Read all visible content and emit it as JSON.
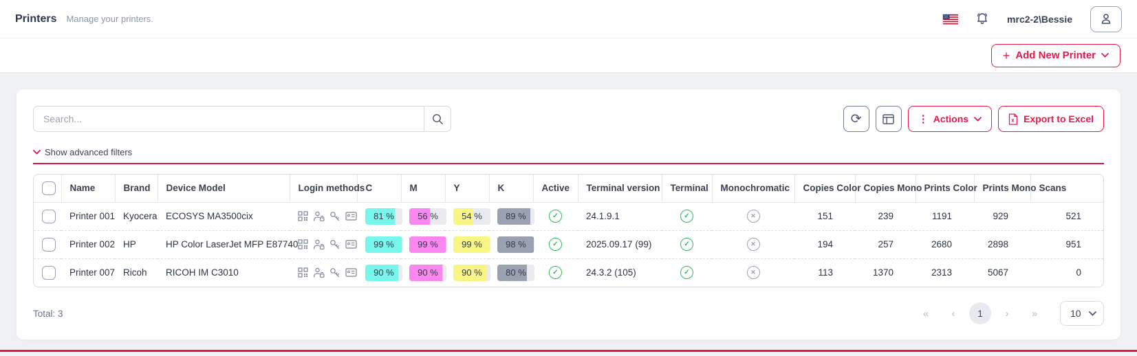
{
  "header": {
    "title": "Printers",
    "subtitle": "Manage your printers.",
    "username": "mrc2-2\\Bessie"
  },
  "toolbar": {
    "add_label": "Add New Printer",
    "actions_label": "Actions",
    "export_label": "Export to Excel"
  },
  "card": {
    "search_placeholder": "Search...",
    "filters_label": "Show advanced filters"
  },
  "table": {
    "columns": [
      "Name",
      "Brand",
      "Device Model",
      "Login methods",
      "C",
      "M",
      "Y",
      "K",
      "Active",
      "Terminal version",
      "Terminal",
      "Monochromatic",
      "Copies Color",
      "Copies Mono",
      "Prints Color",
      "Prints Mono",
      "Scans"
    ],
    "login_method_icons": [
      "qr-code",
      "user-lock",
      "key",
      "id-card"
    ],
    "rows": [
      {
        "name": "Printer 001",
        "brand": "Kyocera",
        "model": "ECOSYS MA3500cix",
        "c": 81,
        "m": 56,
        "y": 54,
        "k": 89,
        "active": true,
        "terminal_version": "24.1.9.1",
        "terminal": true,
        "monochromatic": false,
        "copies_color": "151",
        "copies_mono": "239",
        "prints_color": "1191",
        "prints_mono": "929",
        "scans": "521"
      },
      {
        "name": "Printer 002",
        "brand": "HP",
        "model": "HP Color LaserJet MFP E87740",
        "c": 99,
        "m": 99,
        "y": 99,
        "k": 98,
        "active": true,
        "terminal_version": "2025.09.17 (99)",
        "terminal": true,
        "monochromatic": false,
        "copies_color": "194",
        "copies_mono": "257",
        "prints_color": "2680",
        "prints_mono": "2898",
        "scans": "951"
      },
      {
        "name": "Printer 007",
        "brand": "Ricoh",
        "model": "RICOH IM C3010",
        "c": 90,
        "m": 90,
        "y": 90,
        "k": 80,
        "active": true,
        "terminal_version": "24.3.2 (105)",
        "terminal": true,
        "monochromatic": false,
        "copies_color": "113",
        "copies_mono": "1370",
        "prints_color": "2313",
        "prints_mono": "5067",
        "scans": "0"
      }
    ]
  },
  "footer": {
    "total_label": "Total: 3",
    "current_page": "1",
    "page_size": "10"
  },
  "icons": {
    "plus": "+",
    "kebab": "⋮",
    "refresh": "⟳",
    "check": "✓",
    "cross": "✕",
    "first_page": "«",
    "prev_page": "‹",
    "next_page": "›",
    "last_page": "»"
  },
  "colors": {
    "accent": "#e8174a",
    "cyan": "#79f6ec",
    "magenta": "#fa86ef",
    "yellow": "#f8f584",
    "black_ink": "#9aa2b2",
    "badge_rest": "#e9ebee",
    "success": "#2eb85c"
  }
}
